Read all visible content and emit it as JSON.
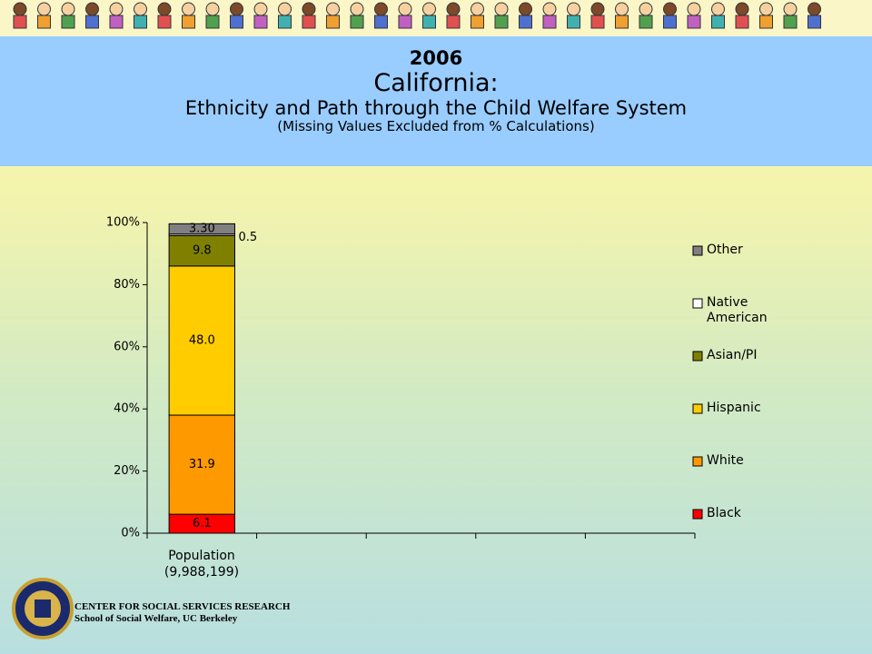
{
  "header": {
    "year": "2006",
    "state": "California:",
    "subtitle": "Ethnicity and Path through the Child Welfare System",
    "note": "(Missing Values Excluded from % Calculations)"
  },
  "chart_data": {
    "type": "stacked_bar",
    "categories": [
      "Population\n(9,988,199)",
      null,
      null,
      null,
      null
    ],
    "series": [
      {
        "name": "Black",
        "color": "#ff0000",
        "values": [
          6.1,
          null,
          null,
          null,
          null
        ]
      },
      {
        "name": "White",
        "color": "#ff9900",
        "values": [
          31.9,
          null,
          null,
          null,
          null
        ]
      },
      {
        "name": "Hispanic",
        "color": "#ffcc00",
        "values": [
          48.0,
          null,
          null,
          null,
          null
        ],
        "value_labels": [
          "48.0",
          null,
          null,
          null,
          null
        ]
      },
      {
        "name": "Asian/PI",
        "color": "#808000",
        "values": [
          9.8,
          null,
          null,
          null,
          null
        ]
      },
      {
        "name": "Native American",
        "color": "#ffffff",
        "values": [
          0.5,
          null,
          null,
          null,
          null
        ]
      },
      {
        "name": "Other",
        "color": "#808080",
        "values": [
          3.3,
          null,
          null,
          null,
          null
        ],
        "value_labels": [
          "3.30",
          null,
          null,
          null,
          null
        ]
      }
    ],
    "ylim": [
      0,
      100
    ],
    "yticks": [
      {
        "value": 0,
        "label": "0%"
      },
      {
        "value": 20,
        "label": "20%"
      },
      {
        "value": 40,
        "label": "40%"
      },
      {
        "value": 60,
        "label": "60%"
      },
      {
        "value": 80,
        "label": "80%"
      },
      {
        "value": 100,
        "label": "100%"
      }
    ],
    "legend": "right"
  },
  "footer": {
    "line1": "CENTER FOR SOCIAL SERVICES RESEARCH",
    "line2": "School of Social Welfare, UC Berkeley"
  }
}
